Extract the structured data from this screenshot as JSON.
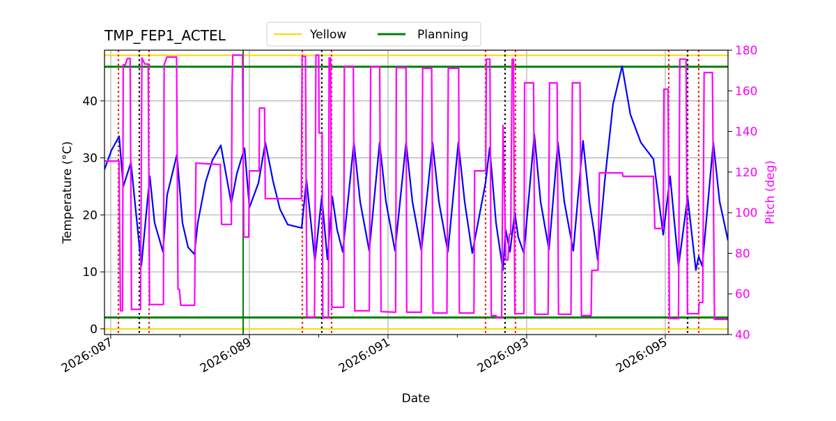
{
  "chart_data": {
    "type": "line",
    "title": "TMP_FEP1_ACTEL",
    "xlabel": "Date",
    "ylabel": "Temperature ($^\\circ$C)",
    "ylabel_display": "Temperature (°C)",
    "y2label": "Pitch (deg)",
    "xlim": [
      86.91,
      95.905
    ],
    "ylim": [
      -1.0,
      48.9
    ],
    "y2lim": [
      40,
      180
    ],
    "grid": true,
    "legend_placement": "top-center, above plot",
    "x_ticks": [
      {
        "value": 87,
        "label": "2026:087"
      },
      {
        "value": 89,
        "label": "2026:089"
      },
      {
        "value": 91,
        "label": "2026:091"
      },
      {
        "value": 93,
        "label": "2026:093"
      },
      {
        "value": 95,
        "label": "2026:095"
      }
    ],
    "x_minor_ticks": [
      88,
      90,
      92,
      94
    ],
    "y_ticks": [
      0,
      10,
      20,
      30,
      40
    ],
    "y2_ticks": [
      40,
      60,
      80,
      100,
      120,
      140,
      160,
      180
    ],
    "colors": {
      "temperature": "#0000ff",
      "pitch": "#ff00ff",
      "yellow": "#ffd700",
      "planning": "#008000",
      "red_marker": "#ff0000",
      "black_marker": "#000000",
      "grid": "#b0b0b0"
    },
    "legend": [
      {
        "label": "Yellow",
        "color": "#ffd700"
      },
      {
        "label": "Planning",
        "color": "#008000"
      }
    ],
    "limit_lines": {
      "yellow": [
        0,
        48
      ],
      "planning": [
        2,
        46
      ]
    },
    "vertical_lines": {
      "planning_green": [
        88.91
      ],
      "red_dotted": [
        87.111,
        87.553,
        89.764,
        90.186,
        92.407,
        92.839,
        95.05,
        95.482
      ],
      "black_dotted": [
        87.412,
        90.045,
        92.688,
        95.322
      ]
    },
    "series": [
      {
        "axis": "left",
        "color": "#0000ff",
        "points": [
          [
            86.91,
            28.0
          ],
          [
            87.01,
            31.3
          ],
          [
            87.121,
            33.8
          ],
          [
            87.181,
            25.0
          ],
          [
            87.291,
            29.2
          ],
          [
            87.442,
            11.1
          ],
          [
            87.563,
            26.8
          ],
          [
            87.633,
            18.6
          ],
          [
            87.754,
            13.5
          ],
          [
            87.814,
            23.5
          ],
          [
            87.955,
            30.6
          ],
          [
            88.035,
            18.6
          ],
          [
            88.116,
            14.3
          ],
          [
            88.206,
            13.1
          ],
          [
            88.256,
            18.6
          ],
          [
            88.367,
            25.7
          ],
          [
            88.467,
            29.6
          ],
          [
            88.588,
            32.2
          ],
          [
            88.739,
            22.0
          ],
          [
            88.819,
            27.2
          ],
          [
            88.93,
            31.7
          ],
          [
            89.0,
            21.3
          ],
          [
            89.131,
            25.6
          ],
          [
            89.231,
            32.7
          ],
          [
            89.342,
            25.9
          ],
          [
            89.442,
            21.0
          ],
          [
            89.553,
            18.3
          ],
          [
            89.754,
            17.7
          ],
          [
            89.824,
            26.2
          ],
          [
            89.945,
            11.9
          ],
          [
            90.045,
            23.2
          ],
          [
            90.126,
            12.2
          ],
          [
            90.196,
            23.2
          ],
          [
            90.266,
            17.4
          ],
          [
            90.347,
            13.5
          ],
          [
            90.508,
            32.7
          ],
          [
            90.598,
            22.3
          ],
          [
            90.729,
            13.7
          ],
          [
            90.879,
            32.7
          ],
          [
            90.97,
            22.3
          ],
          [
            91.101,
            13.7
          ],
          [
            91.261,
            32.7
          ],
          [
            91.352,
            22.3
          ],
          [
            91.482,
            13.7
          ],
          [
            91.643,
            32.7
          ],
          [
            91.734,
            22.3
          ],
          [
            91.864,
            13.5
          ],
          [
            92.015,
            32.7
          ],
          [
            92.106,
            22.3
          ],
          [
            92.216,
            13.3
          ],
          [
            92.407,
            25.6
          ],
          [
            92.467,
            31.8
          ],
          [
            92.558,
            18.6
          ],
          [
            92.658,
            10.3
          ],
          [
            92.698,
            17.4
          ],
          [
            92.759,
            13.5
          ],
          [
            92.829,
            20.4
          ],
          [
            92.879,
            16.1
          ],
          [
            92.96,
            13.3
          ],
          [
            93.111,
            34.1
          ],
          [
            93.201,
            22.3
          ],
          [
            93.322,
            13.9
          ],
          [
            93.452,
            32.7
          ],
          [
            93.543,
            22.3
          ],
          [
            93.673,
            13.7
          ],
          [
            93.814,
            33.0
          ],
          [
            93.905,
            22.3
          ],
          [
            93.975,
            16.8
          ],
          [
            94.025,
            12.1
          ],
          [
            94.126,
            25.9
          ],
          [
            94.246,
            39.4
          ],
          [
            94.377,
            46.1
          ],
          [
            94.497,
            37.6
          ],
          [
            94.648,
            32.7
          ],
          [
            94.829,
            29.8
          ],
          [
            94.97,
            16.5
          ],
          [
            95.07,
            26.8
          ],
          [
            95.191,
            11.0
          ],
          [
            95.322,
            23.1
          ],
          [
            95.442,
            10.3
          ],
          [
            95.482,
            12.7
          ],
          [
            95.533,
            11.0
          ],
          [
            95.693,
            32.7
          ],
          [
            95.784,
            22.3
          ],
          [
            95.905,
            15.5
          ]
        ]
      },
      {
        "axis": "right",
        "color": "#ff00ff",
        "points": [
          [
            86.91,
            125.4
          ],
          [
            87.12,
            125.4
          ],
          [
            87.14,
            51.7
          ],
          [
            87.17,
            51.7
          ],
          [
            87.18,
            172.8
          ],
          [
            87.21,
            172.8
          ],
          [
            87.24,
            175.9
          ],
          [
            87.28,
            175.9
          ],
          [
            87.3,
            52.4
          ],
          [
            87.43,
            52.4
          ],
          [
            87.45,
            176.2
          ],
          [
            87.49,
            173.2
          ],
          [
            87.54,
            173.2
          ],
          [
            87.56,
            54.8
          ],
          [
            87.76,
            54.8
          ],
          [
            87.77,
            172.8
          ],
          [
            87.81,
            176.6
          ],
          [
            87.95,
            176.6
          ],
          [
            87.97,
            62.3
          ],
          [
            87.99,
            62.3
          ],
          [
            88.01,
            54.4
          ],
          [
            88.21,
            54.4
          ],
          [
            88.23,
            124.4
          ],
          [
            88.58,
            123.7
          ],
          [
            88.6,
            94.2
          ],
          [
            88.74,
            94.2
          ],
          [
            88.75,
            160.8
          ],
          [
            88.76,
            177.6
          ],
          [
            88.9,
            177.6
          ],
          [
            88.92,
            88.0
          ],
          [
            88.99,
            88.0
          ],
          [
            89.0,
            120.6
          ],
          [
            89.14,
            120.6
          ],
          [
            89.145,
            151.5
          ],
          [
            89.22,
            151.5
          ],
          [
            89.23,
            106.9
          ],
          [
            89.75,
            106.9
          ],
          [
            89.76,
            176.9
          ],
          [
            89.81,
            176.9
          ],
          [
            89.83,
            48.6
          ],
          [
            89.94,
            48.6
          ],
          [
            89.96,
            177.6
          ],
          [
            90.0,
            177.6
          ],
          [
            90.005,
            139.2
          ],
          [
            90.05,
            139.2
          ],
          [
            90.06,
            48.2
          ],
          [
            90.14,
            48.2
          ],
          [
            90.15,
            176.2
          ],
          [
            90.17,
            176.2
          ],
          [
            90.19,
            53.4
          ],
          [
            90.36,
            53.4
          ],
          [
            90.37,
            172.1
          ],
          [
            90.5,
            172.1
          ],
          [
            90.52,
            51.7
          ],
          [
            90.73,
            51.7
          ],
          [
            90.75,
            171.8
          ],
          [
            90.88,
            171.8
          ],
          [
            90.9,
            51.3
          ],
          [
            91.11,
            51.0
          ],
          [
            91.12,
            171.4
          ],
          [
            91.26,
            171.4
          ],
          [
            91.27,
            51.0
          ],
          [
            91.48,
            51.0
          ],
          [
            91.5,
            171.1
          ],
          [
            91.63,
            171.1
          ],
          [
            91.65,
            50.6
          ],
          [
            91.85,
            50.6
          ],
          [
            91.87,
            171.1
          ],
          [
            92.02,
            171.1
          ],
          [
            92.03,
            50.6
          ],
          [
            92.24,
            50.6
          ],
          [
            92.25,
            120.6
          ],
          [
            92.41,
            120.6
          ],
          [
            92.42,
            175.6
          ],
          [
            92.47,
            175.6
          ],
          [
            92.49,
            49.3
          ],
          [
            92.56,
            49.3
          ],
          [
            92.57,
            48.2
          ],
          [
            92.64,
            48.2
          ],
          [
            92.66,
            143.0
          ],
          [
            92.7,
            76.7
          ],
          [
            92.73,
            76.7
          ],
          [
            92.75,
            89.4
          ],
          [
            92.77,
            89.4
          ],
          [
            92.79,
            175.6
          ],
          [
            92.81,
            175.6
          ],
          [
            92.83,
            50.3
          ],
          [
            92.96,
            50.3
          ],
          [
            92.97,
            163.9
          ],
          [
            93.1,
            163.9
          ],
          [
            93.12,
            50.0
          ],
          [
            93.31,
            50.0
          ],
          [
            93.33,
            163.9
          ],
          [
            93.44,
            163.9
          ],
          [
            93.46,
            50.0
          ],
          [
            93.64,
            50.0
          ],
          [
            93.66,
            163.9
          ],
          [
            93.77,
            163.9
          ],
          [
            93.79,
            49.3
          ],
          [
            93.93,
            49.3
          ],
          [
            93.94,
            71.6
          ],
          [
            94.03,
            71.6
          ],
          [
            94.05,
            119.6
          ],
          [
            94.38,
            119.6
          ],
          [
            94.39,
            117.9
          ],
          [
            94.83,
            117.9
          ],
          [
            94.85,
            92.2
          ],
          [
            94.97,
            92.2
          ],
          [
            94.98,
            160.8
          ],
          [
            95.04,
            160.8
          ],
          [
            95.06,
            47.9
          ],
          [
            95.19,
            47.9
          ],
          [
            95.21,
            175.6
          ],
          [
            95.3,
            175.6
          ],
          [
            95.32,
            50.3
          ],
          [
            95.48,
            50.3
          ],
          [
            95.49,
            55.8
          ],
          [
            95.54,
            55.8
          ],
          [
            95.56,
            169.0
          ],
          [
            95.68,
            169.0
          ],
          [
            95.71,
            47.5
          ],
          [
            95.905,
            47.5
          ]
        ]
      }
    ]
  }
}
